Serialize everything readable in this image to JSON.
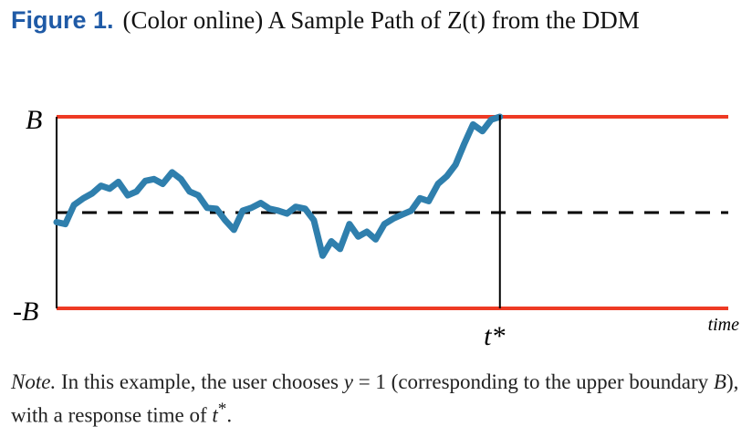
{
  "caption": {
    "figure_label": "Figure 1.",
    "title_text": "(Color online) A Sample Path of Z(t) from the DDM"
  },
  "chart_data": {
    "type": "line",
    "title": "",
    "boundary_upper_label": "B",
    "boundary_lower_label": "-B",
    "start_level_line": "dashed",
    "crossing_label": "t*",
    "xlabel": "time",
    "ylabel": "",
    "ylim": [
      -1,
      1
    ],
    "xlim": [
      0,
      1
    ],
    "grid": false,
    "colors": {
      "boundary": "#ee3a24",
      "path": "#2f7fad",
      "axis": "#000000"
    },
    "series": [
      {
        "x": [
          0.0,
          0.013,
          0.026,
          0.04,
          0.053,
          0.066,
          0.079,
          0.092,
          0.106,
          0.119,
          0.132,
          0.145,
          0.158,
          0.172,
          0.185,
          0.198,
          0.211,
          0.224,
          0.238,
          0.251,
          0.264,
          0.277,
          0.29,
          0.304,
          0.317,
          0.33,
          0.343,
          0.356,
          0.37,
          0.383,
          0.396,
          0.409,
          0.422,
          0.436,
          0.449,
          0.462,
          0.475,
          0.488,
          0.502,
          0.515,
          0.528,
          0.541,
          0.554,
          0.568,
          0.581,
          0.594,
          0.607,
          0.62,
          0.634,
          0.647,
          0.66
        ],
        "values": [
          -0.1,
          -0.12,
          0.08,
          0.15,
          0.2,
          0.28,
          0.25,
          0.32,
          0.18,
          0.22,
          0.33,
          0.35,
          0.3,
          0.42,
          0.35,
          0.22,
          0.18,
          0.05,
          0.04,
          -0.08,
          -0.18,
          0.02,
          0.05,
          0.1,
          0.04,
          0.02,
          -0.01,
          0.06,
          0.04,
          -0.08,
          -0.45,
          -0.3,
          -0.38,
          -0.12,
          -0.25,
          -0.2,
          -0.28,
          -0.12,
          -0.06,
          -0.02,
          0.02,
          0.15,
          0.12,
          0.3,
          0.38,
          0.5,
          0.72,
          0.92,
          0.85,
          0.97,
          1.0
        ]
      }
    ]
  },
  "note": {
    "label": "Note.",
    "text_before_y": " In this example, the user chooses ",
    "var_y": "y",
    "text_eq": " = 1 (corresponding to the upper boundary ",
    "var_B": "B",
    "text_mid": "), with a response time of ",
    "var_t": "t",
    "sup": "*",
    "text_end": "."
  }
}
